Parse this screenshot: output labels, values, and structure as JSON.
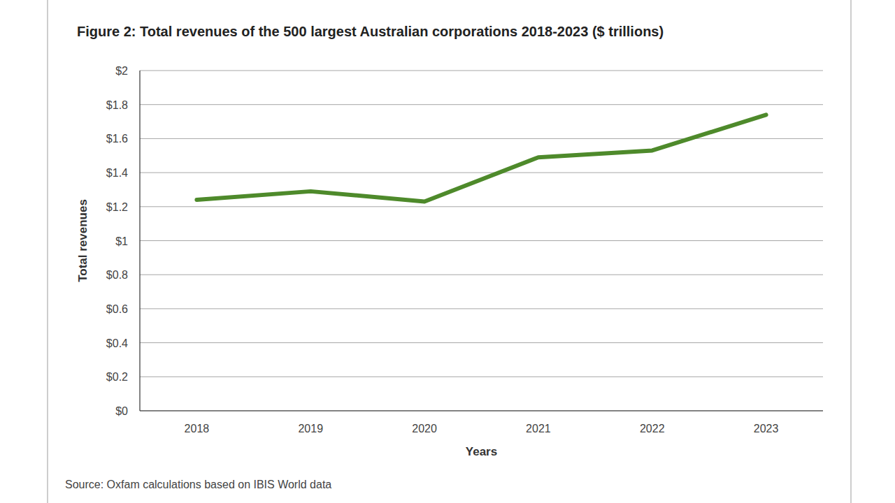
{
  "chart_data": {
    "type": "line",
    "title": "Figure 2: Total revenues of the 500 largest Australian corporations 2018-2023 ($ trillions)",
    "x_label": "Years",
    "y_label": "Total revenues",
    "source": "Source: Oxfam calculations based on IBIS World data",
    "categories": [
      "2018",
      "2019",
      "2020",
      "2021",
      "2022",
      "2023"
    ],
    "values": [
      1.24,
      1.29,
      1.23,
      1.49,
      1.53,
      1.74
    ],
    "color": "#4e8a2b",
    "ylim": [
      0,
      2
    ],
    "yticks": [
      {
        "value": 0,
        "label": "$0"
      },
      {
        "value": 0.2,
        "label": "$0.2"
      },
      {
        "value": 0.4,
        "label": "$0.4"
      },
      {
        "value": 0.6,
        "label": "$0.6"
      },
      {
        "value": 0.8,
        "label": "$0.8"
      },
      {
        "value": 1,
        "label": "$1"
      },
      {
        "value": 1.2,
        "label": "$1.2"
      },
      {
        "value": 1.4,
        "label": "$1.4"
      },
      {
        "value": 1.6,
        "label": "$1.6"
      },
      {
        "value": 1.8,
        "label": "$1.8"
      },
      {
        "value": 2,
        "label": "$2"
      }
    ],
    "grid": true
  }
}
